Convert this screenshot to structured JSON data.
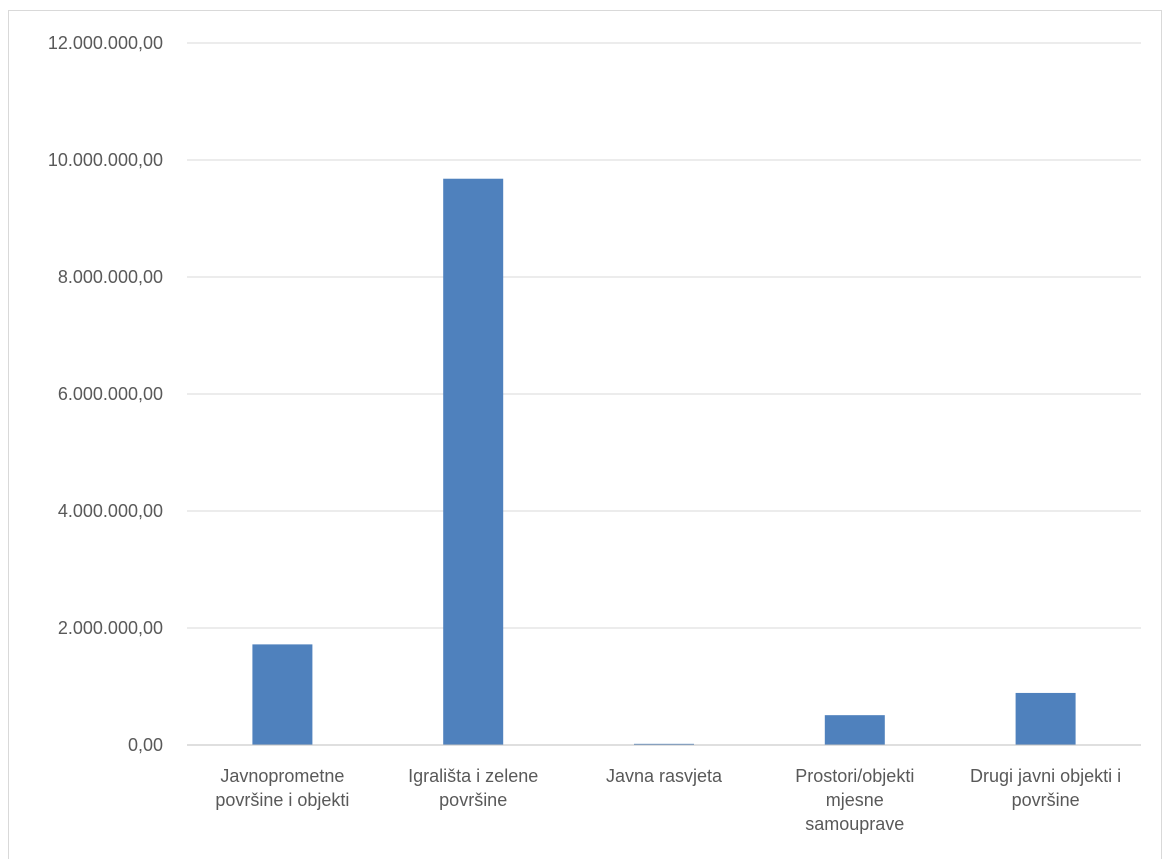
{
  "chart_data": {
    "type": "bar",
    "title": "",
    "xlabel": "",
    "ylabel": "",
    "categories": [
      [
        "Javnoprometne",
        "površine i objekti"
      ],
      [
        "Igrališta i zelene",
        "površine"
      ],
      [
        "Javna rasvjeta"
      ],
      [
        "Prostori/objekti",
        "mjesne",
        "samouprave"
      ],
      [
        "Drugi javni objekti i",
        "površine"
      ]
    ],
    "values": [
      1720000,
      9680000,
      20000,
      510000,
      890000
    ],
    "ylim": [
      0,
      12000000
    ],
    "yticks": [
      0,
      2000000,
      4000000,
      6000000,
      8000000,
      10000000,
      12000000
    ],
    "ytick_labels": [
      "0,00",
      "2.000.000,00",
      "4.000.000,00",
      "6.000.000,00",
      "8.000.000,00",
      "10.000.000,00",
      "12.000.000,00"
    ],
    "grid": true,
    "legend": "none",
    "colors": {
      "bar": "#4f81bd",
      "grid": "#d9d9d9",
      "axis": "#bfbfbf",
      "text": "#595959"
    }
  }
}
